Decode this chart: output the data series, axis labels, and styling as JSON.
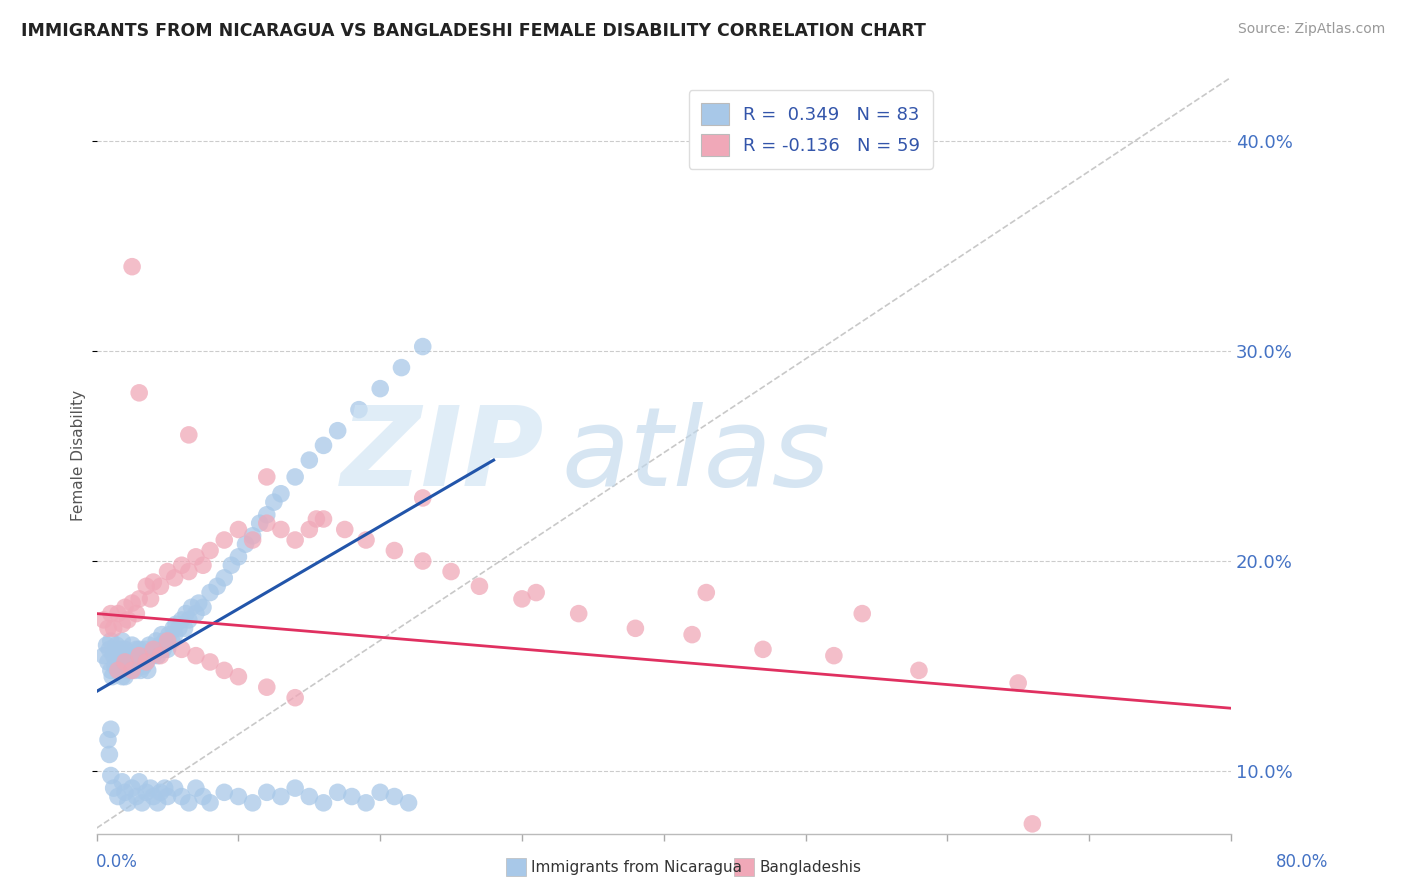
{
  "title": "IMMIGRANTS FROM NICARAGUA VS BANGLADESHI FEMALE DISABILITY CORRELATION CHART",
  "source": "Source: ZipAtlas.com",
  "ylabel": "Female Disability",
  "xlim": [
    0.0,
    0.8
  ],
  "ylim": [
    0.07,
    0.43
  ],
  "yticks": [
    0.1,
    0.2,
    0.3,
    0.4
  ],
  "ytick_labels": [
    "10.0%",
    "20.0%",
    "30.0%",
    "40.0%"
  ],
  "xticks": [
    0.0,
    0.1,
    0.2,
    0.3,
    0.4,
    0.5,
    0.6,
    0.7,
    0.8
  ],
  "blue_color": "#A8C8E8",
  "pink_color": "#F0A8B8",
  "blue_line_color": "#2255AA",
  "pink_line_color": "#E03060",
  "blue_scatter_x": [
    0.005,
    0.007,
    0.008,
    0.009,
    0.01,
    0.01,
    0.011,
    0.012,
    0.013,
    0.014,
    0.015,
    0.015,
    0.016,
    0.017,
    0.018,
    0.018,
    0.019,
    0.02,
    0.02,
    0.021,
    0.022,
    0.023,
    0.024,
    0.025,
    0.025,
    0.026,
    0.027,
    0.028,
    0.03,
    0.03,
    0.031,
    0.032,
    0.033,
    0.034,
    0.035,
    0.036,
    0.037,
    0.038,
    0.04,
    0.041,
    0.042,
    0.043,
    0.045,
    0.046,
    0.047,
    0.048,
    0.05,
    0.051,
    0.053,
    0.054,
    0.055,
    0.056,
    0.058,
    0.06,
    0.062,
    0.063,
    0.065,
    0.067,
    0.07,
    0.072,
    0.075,
    0.08,
    0.085,
    0.09,
    0.095,
    0.1,
    0.105,
    0.11,
    0.115,
    0.12,
    0.125,
    0.13,
    0.14,
    0.15,
    0.16,
    0.17,
    0.185,
    0.2,
    0.215,
    0.23,
    0.008,
    0.009,
    0.01
  ],
  "blue_scatter_y": [
    0.155,
    0.16,
    0.152,
    0.158,
    0.148,
    0.162,
    0.145,
    0.155,
    0.15,
    0.16,
    0.148,
    0.155,
    0.152,
    0.158,
    0.145,
    0.162,
    0.15,
    0.145,
    0.158,
    0.148,
    0.155,
    0.152,
    0.148,
    0.155,
    0.16,
    0.152,
    0.148,
    0.158,
    0.152,
    0.158,
    0.148,
    0.155,
    0.15,
    0.158,
    0.152,
    0.148,
    0.16,
    0.155,
    0.155,
    0.158,
    0.162,
    0.155,
    0.16,
    0.165,
    0.158,
    0.162,
    0.158,
    0.165,
    0.162,
    0.168,
    0.165,
    0.17,
    0.168,
    0.172,
    0.168,
    0.175,
    0.172,
    0.178,
    0.175,
    0.18,
    0.178,
    0.185,
    0.188,
    0.192,
    0.198,
    0.202,
    0.208,
    0.212,
    0.218,
    0.222,
    0.228,
    0.232,
    0.24,
    0.248,
    0.255,
    0.262,
    0.272,
    0.282,
    0.292,
    0.302,
    0.115,
    0.108,
    0.12
  ],
  "blue_low_x": [
    0.01,
    0.012,
    0.015,
    0.018,
    0.02,
    0.022,
    0.025,
    0.028,
    0.03,
    0.032,
    0.035,
    0.038,
    0.04,
    0.043,
    0.045,
    0.048,
    0.05,
    0.055,
    0.06,
    0.065,
    0.07,
    0.075,
    0.08,
    0.09,
    0.1,
    0.11,
    0.12,
    0.13,
    0.14,
    0.15,
    0.16,
    0.17,
    0.18,
    0.19,
    0.2,
    0.21,
    0.22
  ],
  "blue_low_y": [
    0.098,
    0.092,
    0.088,
    0.095,
    0.09,
    0.085,
    0.092,
    0.088,
    0.095,
    0.085,
    0.09,
    0.092,
    0.088,
    0.085,
    0.09,
    0.092,
    0.088,
    0.092,
    0.088,
    0.085,
    0.092,
    0.088,
    0.085,
    0.09,
    0.088,
    0.085,
    0.09,
    0.088,
    0.092,
    0.088,
    0.085,
    0.09,
    0.088,
    0.085,
    0.09,
    0.088,
    0.085
  ],
  "pink_scatter_x": [
    0.005,
    0.008,
    0.01,
    0.012,
    0.015,
    0.018,
    0.02,
    0.022,
    0.025,
    0.028,
    0.03,
    0.035,
    0.038,
    0.04,
    0.045,
    0.05,
    0.055,
    0.06,
    0.065,
    0.07,
    0.075,
    0.08,
    0.09,
    0.1,
    0.11,
    0.12,
    0.13,
    0.14,
    0.15,
    0.16,
    0.175,
    0.19,
    0.21,
    0.23,
    0.25,
    0.27,
    0.3,
    0.34,
    0.38,
    0.42,
    0.47,
    0.52,
    0.58,
    0.65,
    0.015,
    0.02,
    0.025,
    0.03,
    0.035,
    0.04,
    0.045,
    0.05,
    0.06,
    0.07,
    0.08,
    0.09,
    0.1,
    0.12,
    0.14
  ],
  "pink_scatter_y": [
    0.172,
    0.168,
    0.175,
    0.168,
    0.175,
    0.17,
    0.178,
    0.172,
    0.18,
    0.175,
    0.182,
    0.188,
    0.182,
    0.19,
    0.188,
    0.195,
    0.192,
    0.198,
    0.195,
    0.202,
    0.198,
    0.205,
    0.21,
    0.215,
    0.21,
    0.218,
    0.215,
    0.21,
    0.215,
    0.22,
    0.215,
    0.21,
    0.205,
    0.2,
    0.195,
    0.188,
    0.182,
    0.175,
    0.168,
    0.165,
    0.158,
    0.155,
    0.148,
    0.142,
    0.148,
    0.152,
    0.148,
    0.155,
    0.152,
    0.158,
    0.155,
    0.162,
    0.158,
    0.155,
    0.152,
    0.148,
    0.145,
    0.14,
    0.135
  ],
  "pink_high_x": [
    0.025,
    0.03,
    0.065,
    0.12,
    0.155,
    0.23,
    0.31,
    0.43,
    0.54,
    0.66
  ],
  "pink_high_y": [
    0.34,
    0.28,
    0.26,
    0.24,
    0.22,
    0.23,
    0.185,
    0.185,
    0.175,
    0.075
  ],
  "blue_line_x": [
    0.0,
    0.28
  ],
  "blue_line_y": [
    0.138,
    0.248
  ],
  "pink_line_x": [
    0.0,
    0.8
  ],
  "pink_line_y": [
    0.175,
    0.13
  ],
  "ref_line_x": [
    0.0,
    0.8
  ],
  "ref_line_y": [
    0.073,
    0.43
  ]
}
